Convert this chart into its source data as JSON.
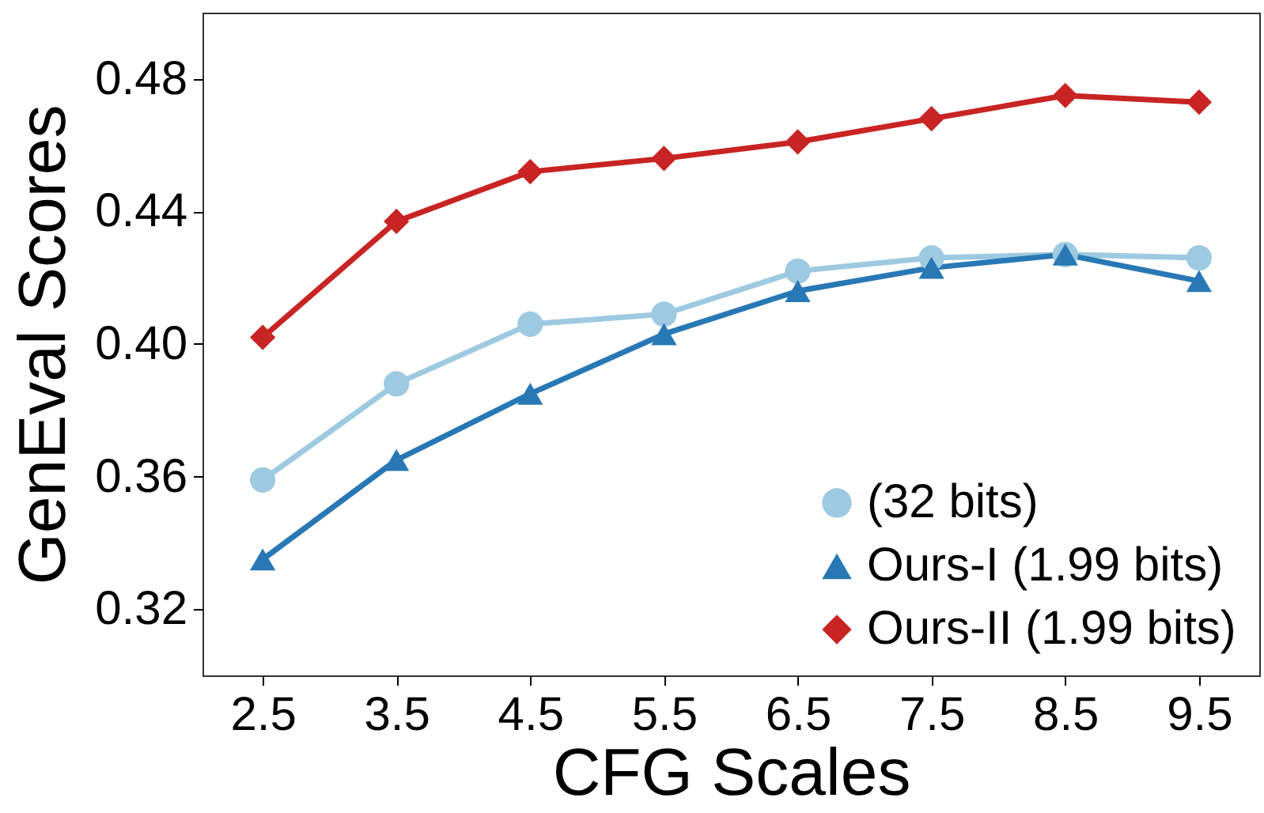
{
  "chart_data": {
    "type": "line",
    "xlabel": "CFG Scales",
    "ylabel": "GenEval Scores",
    "categories": [
      "2.5",
      "3.5",
      "4.5",
      "5.5",
      "6.5",
      "7.5",
      "8.5",
      "9.5"
    ],
    "series": [
      {
        "name": "(32 bits)",
        "color": "#9ecae1",
        "marker": "circle",
        "values": [
          0.359,
          0.388,
          0.406,
          0.409,
          0.422,
          0.426,
          0.427,
          0.426
        ]
      },
      {
        "name": "Ours-I (1.99 bits)",
        "color": "#2878b5",
        "marker": "triangle",
        "values": [
          0.335,
          0.365,
          0.385,
          0.403,
          0.416,
          0.423,
          0.427,
          0.419
        ]
      },
      {
        "name": "Ours-II (1.99 bits)",
        "color": "#c82423",
        "marker": "diamond",
        "values": [
          0.402,
          0.437,
          0.452,
          0.456,
          0.461,
          0.468,
          0.475,
          0.473
        ]
      }
    ],
    "ylim": [
      0.3,
      0.5
    ],
    "yticks": [
      0.32,
      0.36,
      {
        "value": 0.4,
        "label": "0.40"
      },
      0.44,
      0.48
    ],
    "grid": false,
    "legend": "bottom right",
    "line_style": "solid"
  }
}
